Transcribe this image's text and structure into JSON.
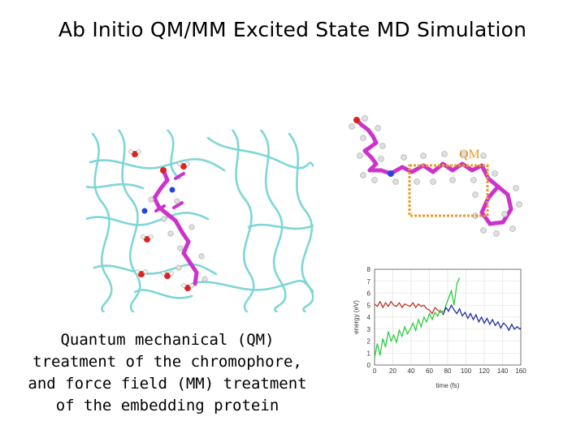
{
  "slide": {
    "title": "Ab Initio QM/MM Excited State MD Simulation",
    "caption_lines": [
      "Quantum mechanical (QM)",
      "treatment of the chromophore,",
      "and force field (MM) treatment",
      "of the embedding protein"
    ]
  },
  "molecule_panel": {
    "qm_label": "QM",
    "qm_box_color": "#e89b28",
    "chromophore_color": "#cc33cc"
  },
  "protein_panel": {
    "ribbon_color": "#7fd6d6",
    "chromophore_color": "#cc33cc"
  },
  "chart_data": {
    "type": "line",
    "xlabel": "time (fs)",
    "ylabel": "energy (eV)",
    "xlim": [
      0,
      160
    ],
    "ylim": [
      0,
      8
    ],
    "x_ticks": [
      0,
      20,
      40,
      60,
      80,
      100,
      120,
      140,
      160
    ],
    "y_ticks": [
      0,
      1,
      2,
      3,
      4,
      5,
      6,
      7,
      8
    ],
    "grid": true,
    "series": [
      {
        "color": "#c0392b",
        "x": [
          0,
          3,
          6,
          9,
          12,
          15,
          18,
          21,
          24,
          27,
          30,
          33,
          36,
          39,
          42,
          45,
          48,
          51,
          54,
          57,
          60,
          63,
          66,
          69,
          72,
          75
        ],
        "y": [
          5.1,
          4.9,
          5.3,
          4.8,
          5.2,
          4.9,
          5.3,
          5.0,
          4.9,
          5.2,
          4.8,
          5.1,
          5.0,
          4.9,
          5.2,
          4.8,
          5.1,
          4.9,
          5.0,
          4.7,
          4.6,
          4.3,
          4.8,
          4.6,
          4.4,
          4.5
        ]
      },
      {
        "color": "#2ecc40",
        "x": [
          0,
          3,
          6,
          9,
          12,
          15,
          18,
          21,
          24,
          27,
          30,
          33,
          36,
          39,
          42,
          45,
          48,
          51,
          54,
          57,
          60,
          63,
          66,
          69,
          72,
          75,
          78,
          81,
          84,
          87,
          90,
          93
        ],
        "y": [
          0.6,
          1.8,
          0.8,
          2.2,
          1.5,
          2.8,
          2.0,
          2.5,
          1.9,
          2.9,
          2.4,
          3.2,
          2.6,
          3.0,
          3.5,
          2.9,
          3.8,
          3.2,
          4.0,
          3.6,
          4.3,
          3.8,
          4.4,
          4.1,
          4.6,
          4.2,
          5.0,
          5.6,
          6.2,
          5.0,
          6.8,
          7.3
        ]
      },
      {
        "color": "#1f2f9e",
        "x": [
          75,
          78,
          81,
          84,
          87,
          90,
          93,
          96,
          99,
          102,
          105,
          108,
          111,
          114,
          117,
          120,
          123,
          126,
          129,
          132,
          135,
          138,
          141,
          144,
          147,
          150,
          153,
          156,
          159,
          160
        ],
        "y": [
          4.2,
          4.8,
          4.5,
          5.0,
          4.6,
          4.3,
          4.7,
          4.1,
          4.4,
          3.9,
          4.3,
          3.8,
          4.2,
          3.6,
          4.0,
          3.5,
          3.9,
          3.4,
          3.8,
          3.3,
          3.6,
          3.1,
          3.5,
          3.3,
          2.9,
          3.4,
          3.0,
          3.2,
          3.0,
          3.1
        ]
      }
    ]
  }
}
